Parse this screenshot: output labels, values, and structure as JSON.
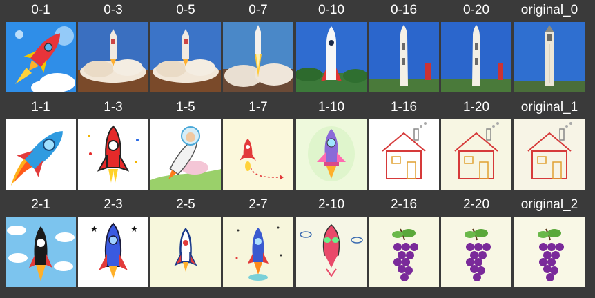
{
  "rows": [
    {
      "cells": [
        {
          "label": "0-1",
          "image": "cartoon-rocket-sky-icon",
          "bg": "#2f8ee8"
        },
        {
          "label": "0-3",
          "image": "rocket-launch-smoke-icon",
          "bg": "#3a6fc0"
        },
        {
          "label": "0-5",
          "image": "rocket-launch-smoke-icon",
          "bg": "#3b74c8"
        },
        {
          "label": "0-7",
          "image": "rocket-launch-fire-icon",
          "bg": "#4a88c8"
        },
        {
          "label": "0-10",
          "image": "rocket-on-ground-icon",
          "bg": "#2f6cd0"
        },
        {
          "label": "0-16",
          "image": "tower-rocket-icon",
          "bg": "#2b66cc"
        },
        {
          "label": "0-20",
          "image": "tower-rocket-icon",
          "bg": "#2b66cc"
        },
        {
          "label": "original_0",
          "image": "campanile-tower-icon",
          "bg": "#2f6fd0"
        }
      ]
    },
    {
      "cells": [
        {
          "label": "1-1",
          "image": "cartoon-rocket-icon",
          "bg": "#ffffff"
        },
        {
          "label": "1-3",
          "image": "red-rocket-icon",
          "bg": "#ffffff"
        },
        {
          "label": "1-5",
          "image": "astronaut-rocket-icon",
          "bg": "#ffffff"
        },
        {
          "label": "1-7",
          "image": "small-rocket-trail-icon",
          "bg": "#fbf8dc"
        },
        {
          "label": "1-10",
          "image": "pink-rocket-icon",
          "bg": "#eef9dc"
        },
        {
          "label": "1-16",
          "image": "house-doodle-icon",
          "bg": "#ffffff"
        },
        {
          "label": "1-20",
          "image": "house-doodle-icon",
          "bg": "#f7f6e3"
        },
        {
          "label": "original_1",
          "image": "house-doodle-icon",
          "bg": "#f7f4e6"
        }
      ]
    },
    {
      "cells": [
        {
          "label": "2-1",
          "image": "rocket-clouds-icon",
          "bg": "#7cc4ee"
        },
        {
          "label": "2-3",
          "image": "blue-rocket-stars-icon",
          "bg": "#ffffff"
        },
        {
          "label": "2-5",
          "image": "blue-rocket-icon",
          "bg": "#f7f7dc"
        },
        {
          "label": "2-7",
          "image": "blue-rocket-sparkles-icon",
          "bg": "#f7f6dc"
        },
        {
          "label": "2-10",
          "image": "pink-rocket-clouds-icon",
          "bg": "#f6f6e6"
        },
        {
          "label": "2-16",
          "image": "grapes-icon",
          "bg": "#f7f7e2"
        },
        {
          "label": "2-20",
          "image": "grapes-icon",
          "bg": "#f8f7e4"
        },
        {
          "label": "original_2",
          "image": "grapes-icon",
          "bg": "#f9f8e6"
        }
      ]
    }
  ]
}
